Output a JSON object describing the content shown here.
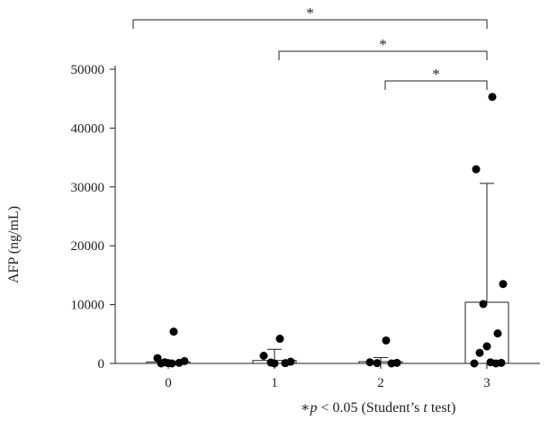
{
  "chart_data": {
    "type": "bar",
    "categories": [
      "0",
      "1",
      "2",
      "3"
    ],
    "series": [
      {
        "values": [
          250,
          500,
          300,
          10400
        ],
        "error_upper": [
          300,
          2400,
          1000,
          30600
        ],
        "points": [
          [
            5400,
            900,
            400,
            200,
            100,
            50,
            0,
            0
          ],
          [
            4200,
            1300,
            300,
            150,
            50,
            0
          ],
          [
            3900,
            200,
            100,
            50,
            0
          ],
          [
            45300,
            33000,
            13500,
            10100,
            5100,
            2900,
            1800,
            200,
            100,
            0,
            0
          ]
        ]
      }
    ],
    "ylabel": "AFP (ng/mL)",
    "xlabel": "",
    "yticks": [
      0,
      10000,
      20000,
      30000,
      40000,
      50000
    ],
    "ytick_labels": [
      "0",
      "10000",
      "20000",
      "30000",
      "40000",
      "50000"
    ],
    "ylim": [
      0,
      50000
    ],
    "grid": false,
    "significance": [
      {
        "from": "0",
        "to": "3",
        "label": "*"
      },
      {
        "from": "1",
        "to": "3",
        "label": "*"
      },
      {
        "from": "2",
        "to": "3",
        "label": "*"
      }
    ],
    "footnote": {
      "star": "∗",
      "p": "p",
      "rest": " < 0.05 (Student’s ",
      "t": "t",
      "end": " test)"
    },
    "colors": {
      "axis": "#231f20",
      "point": "#000000",
      "bar_fill": "#ffffff",
      "bar_stroke": "#231f20"
    }
  }
}
